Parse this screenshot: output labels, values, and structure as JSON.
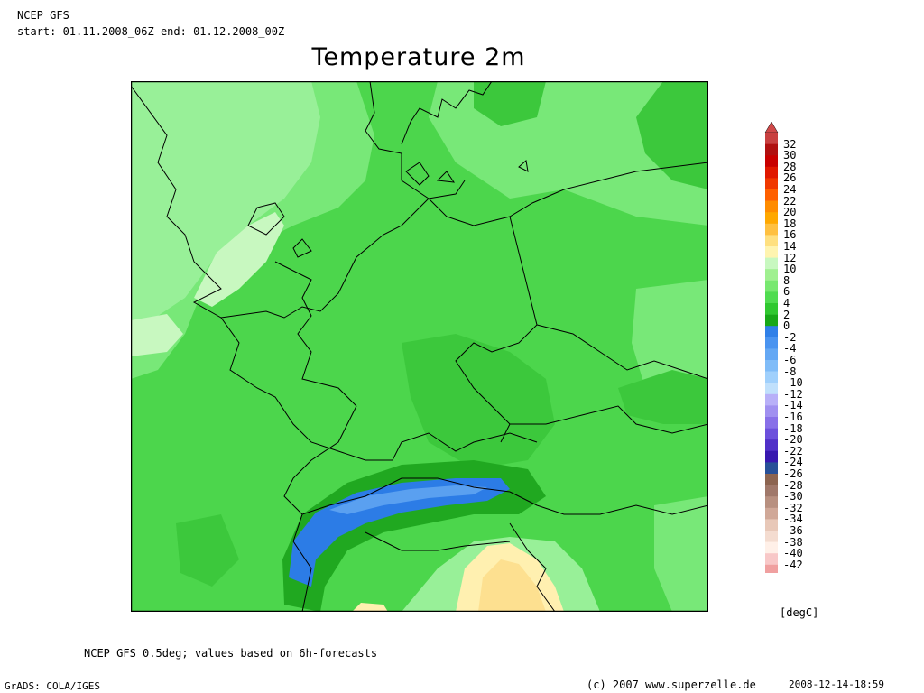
{
  "header": {
    "line1": "NCEP GFS",
    "line2": "start: 01.11.2008_06Z end: 01.12.2008_00Z"
  },
  "title": "Temperature 2m",
  "legend": {
    "unit": "[degC]",
    "labels": [
      "32",
      "30",
      "28",
      "26",
      "24",
      "22",
      "20",
      "18",
      "16",
      "14",
      "12",
      "10",
      "8",
      "6",
      "4",
      "2",
      "0",
      "-2",
      "-4",
      "-6",
      "-8",
      "-10",
      "-12",
      "-14",
      "-16",
      "-18",
      "-20",
      "-22",
      "-24",
      "-26",
      "-28",
      "-30",
      "-32",
      "-34",
      "-36",
      "-38",
      "-40",
      "-42"
    ],
    "colors": [
      "#c84040",
      "#b01010",
      "#c80000",
      "#e01800",
      "#f03800",
      "#ff6000",
      "#ff8c00",
      "#ffa800",
      "#ffc040",
      "#ffe080",
      "#fff4b0",
      "#c8f8c0",
      "#a0f090",
      "#78e870",
      "#50dc50",
      "#30c830",
      "#18a818",
      "#3080e8",
      "#4a94f0",
      "#64a8f4",
      "#80bcf8",
      "#a0d0fc",
      "#c0e0fc",
      "#b8b0f8",
      "#a090f0",
      "#8870e8",
      "#6c50dc",
      "#5030c8",
      "#3818b0",
      "#285098",
      "#8c6450",
      "#a0786a",
      "#b89080",
      "#d0a898",
      "#e8c8b8",
      "#f4dcd0",
      "#fff0e8",
      "#f8c8c8",
      "#f0a0a0"
    ],
    "top_arrow_color": "#d04848",
    "bottom_arrow_color": "#f09898"
  },
  "map": {
    "base_color": "#4cd64c",
    "colors": {
      "warm_green": "#78e878",
      "light_green": "#98f098",
      "pale_green": "#c8f8c0",
      "mid_green": "#3cc83c",
      "dark_green": "#20a820",
      "blue": "#2c7ce6",
      "light_blue": "#5aa0f0",
      "pale_yellow": "#fff0b0",
      "yellow": "#fde090",
      "border": "#000000"
    }
  },
  "footer": {
    "source_note": "NCEP GFS 0.5deg; values based on 6h-forecasts",
    "software": "GrADS: COLA/IGES",
    "copyright": "(c) 2007 www.superzelle.de",
    "timestamp": "2008-12-14-18:59"
  }
}
